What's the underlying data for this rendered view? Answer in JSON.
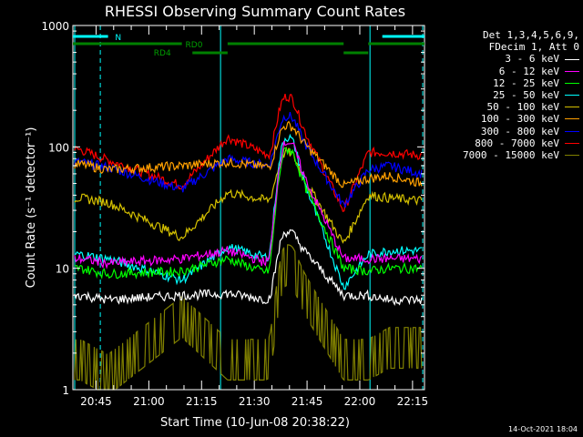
{
  "chart_data": {
    "type": "line",
    "title": "RHESSI Observing Summary Count Rates",
    "xlabel": "Start Time (10-Jun-08 20:38:22)",
    "ylabel": "Count Rate (s⁻¹ detector⁻¹)",
    "yscale": "log",
    "xlim": [
      0,
      100
    ],
    "ylim": [
      1,
      1000
    ],
    "x_tick_labels": [
      "20:45",
      "21:00",
      "21:15",
      "21:30",
      "21:45",
      "22:00",
      "22:15"
    ],
    "x_tick_minutes": [
      6.6,
      21.6,
      36.6,
      51.6,
      66.6,
      81.6,
      96.6
    ],
    "y_tick_labels": [
      "1",
      "10",
      "100",
      "1000"
    ],
    "y_tick_values": [
      1,
      10,
      100,
      1000
    ],
    "legend_header": [
      "Det 1,3,4,5,6,9,",
      "FDecim 1, Att 0"
    ],
    "annotations": {
      "night_marker": "N",
      "rd0": "RD0",
      "rd4": "RD4"
    },
    "series": [
      {
        "name": "3 - 6 keV",
        "color": "#ffffff",
        "levels": [
          6,
          5.5,
          6,
          6.2,
          5.5,
          20,
          6,
          6,
          5.5,
          5.5
        ]
      },
      {
        "name": "6 - 12 keV",
        "color": "#ff00ff",
        "levels": [
          12,
          11,
          12,
          14,
          11,
          110,
          12,
          12,
          12,
          12
        ]
      },
      {
        "name": "12 - 25 keV",
        "color": "#00ff00",
        "levels": [
          10,
          9,
          9.5,
          12,
          9,
          95,
          10,
          9.5,
          10,
          10
        ]
      },
      {
        "name": "25 - 50 keV",
        "color": "#00ffff",
        "levels": [
          13,
          12,
          8,
          15,
          12,
          120,
          7,
          13,
          14,
          14
        ]
      },
      {
        "name": "50 - 100 keV",
        "color": "#d4c000",
        "levels": [
          38,
          35,
          18,
          42,
          36,
          90,
          16,
          40,
          38,
          36
        ]
      },
      {
        "name": "100 - 300 keV",
        "color": "#ffa000",
        "levels": [
          72,
          65,
          70,
          75,
          68,
          150,
          48,
          55,
          58,
          50
        ]
      },
      {
        "name": "300 - 800 keV",
        "color": "#0000ff",
        "levels": [
          75,
          68,
          45,
          80,
          70,
          180,
          33,
          65,
          70,
          60
        ]
      },
      {
        "name": "800 - 7000 keV",
        "color": "#ff0000",
        "levels": [
          95,
          78,
          48,
          120,
          85,
          260,
          30,
          90,
          90,
          85
        ]
      },
      {
        "name": "7000 - 15000 keV",
        "color": "#808000",
        "levels": [
          2,
          1.5,
          4.5,
          2,
          2,
          12,
          2,
          2,
          2.5,
          2.5
        ]
      }
    ]
  },
  "timestamp": "14-Oct-2021 18:04"
}
